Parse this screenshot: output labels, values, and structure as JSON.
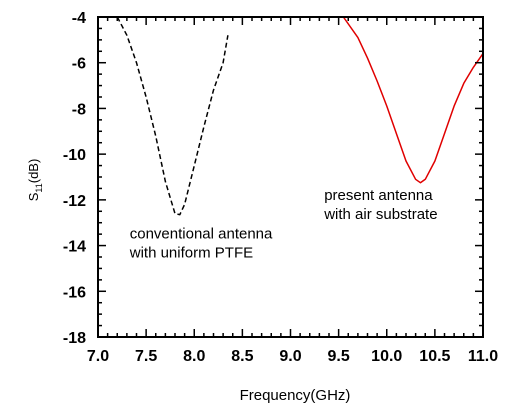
{
  "chart_data": {
    "type": "line",
    "title": "",
    "xlabel": "Frequency(GHz)",
    "ylabel": {
      "main": "S",
      "sub": "11",
      "unit": "(dB)"
    },
    "xlim": [
      7.0,
      11.0
    ],
    "ylim": [
      -18,
      -4
    ],
    "xticks": [
      "7.0",
      "7.5",
      "8.0",
      "8.5",
      "9.0",
      "9.5",
      "10.0",
      "10.5",
      "11.0"
    ],
    "yticks": [
      "-4",
      "-6",
      "-8",
      "-10",
      "-12",
      "-14",
      "-16",
      "-18"
    ],
    "grid": false,
    "series": [
      {
        "style": "dashed",
        "color": "#000000",
        "x": [
          7.2,
          7.3,
          7.4,
          7.5,
          7.6,
          7.7,
          7.8,
          7.85,
          7.9,
          8.0,
          8.1,
          8.2,
          8.3,
          8.35
        ],
        "y": [
          -4.0,
          -4.8,
          -6.0,
          -7.5,
          -9.2,
          -11.2,
          -12.6,
          -12.65,
          -12.2,
          -10.5,
          -8.8,
          -7.2,
          -6.0,
          -4.8
        ]
      },
      {
        "style": "solid",
        "color": "#e00000",
        "x": [
          9.55,
          9.7,
          9.8,
          9.9,
          10.0,
          10.1,
          10.2,
          10.3,
          10.35,
          10.4,
          10.5,
          10.6,
          10.7,
          10.8,
          10.9,
          11.0
        ],
        "y": [
          -4.0,
          -4.9,
          -5.8,
          -6.8,
          -7.9,
          -9.1,
          -10.3,
          -11.1,
          -11.25,
          -11.1,
          -10.3,
          -9.1,
          -7.9,
          -6.9,
          -6.2,
          -5.6
        ]
      }
    ],
    "annotations": [
      {
        "lines": [
          "conventional antenna",
          "with uniform PTFE"
        ],
        "at": [
          7.33,
          -13.7
        ]
      },
      {
        "lines": [
          "present antenna",
          "with air substrate"
        ],
        "at": [
          9.35,
          -12.0
        ]
      }
    ]
  }
}
